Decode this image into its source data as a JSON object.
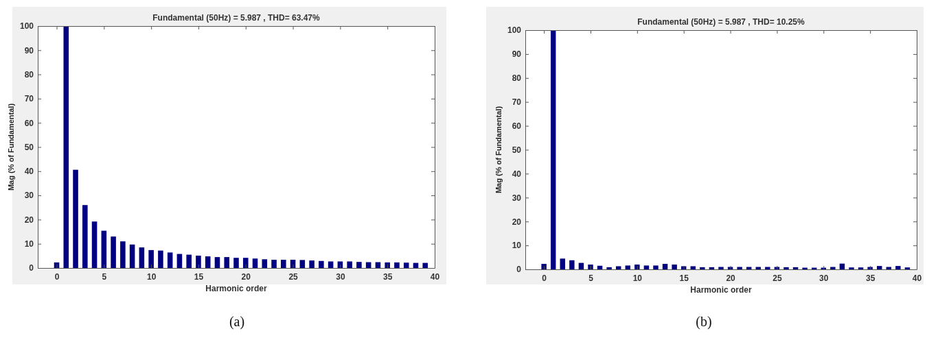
{
  "chart_data": [
    {
      "type": "bar",
      "title": "Fundamental (50Hz) = 5.987 , THD= 63.47%",
      "xlabel": "Harmonic order",
      "ylabel": "Mag (% of Fundamental)",
      "annotations": [
        "(a)"
      ],
      "x": [
        0,
        1,
        2,
        3,
        4,
        5,
        6,
        7,
        8,
        9,
        10,
        11,
        12,
        13,
        14,
        15,
        16,
        17,
        18,
        19,
        20,
        21,
        22,
        23,
        24,
        25,
        26,
        27,
        28,
        29,
        30,
        31,
        32,
        33,
        34,
        35,
        36,
        37,
        38,
        39
      ],
      "series": [
        {
          "color": "#000080",
          "values": [
            2.3,
            100,
            40.6,
            26,
            19.2,
            15.4,
            13,
            11,
            9.7,
            8.5,
            7.4,
            7.2,
            6.4,
            5.8,
            5.5,
            5.1,
            4.8,
            4.5,
            4.5,
            4.2,
            4.2,
            3.9,
            3.6,
            3.4,
            3.4,
            3.4,
            3.3,
            3.1,
            2.9,
            2.7,
            2.7,
            2.7,
            2.5,
            2.4,
            2.4,
            2.3,
            2.3,
            2.2,
            2.1,
            2.1
          ]
        }
      ],
      "xlim": [
        -2,
        40
      ],
      "xticks": [
        0,
        5,
        10,
        15,
        20,
        25,
        30,
        35,
        40
      ],
      "ylim": [
        0,
        100
      ],
      "yticks": [
        0,
        10,
        20,
        30,
        40,
        50,
        60,
        70,
        80,
        90,
        100
      ]
    },
    {
      "type": "bar",
      "title": "Fundamental (50Hz) = 5.987 , THD= 10.25%",
      "xlabel": "Harmonic order",
      "ylabel": "Mag (% of Fundamental)",
      "annotations": [
        "(b)"
      ],
      "x": [
        0,
        1,
        2,
        3,
        4,
        5,
        6,
        7,
        8,
        9,
        10,
        11,
        12,
        13,
        14,
        15,
        16,
        17,
        18,
        19,
        20,
        21,
        22,
        23,
        24,
        25,
        26,
        27,
        28,
        29,
        30,
        31,
        32,
        33,
        34,
        35,
        36,
        37,
        38,
        39
      ],
      "series": [
        {
          "color": "#000080",
          "values": [
            2.3,
            100,
            4.5,
            3.8,
            2.7,
            2.0,
            1.5,
            0.9,
            1.3,
            1.6,
            2.0,
            1.6,
            1.6,
            2.3,
            2.0,
            1.3,
            1.3,
            0.9,
            0.9,
            1.0,
            1.0,
            1.0,
            1.0,
            1.0,
            1.0,
            1.0,
            0.9,
            0.9,
            0.7,
            0.7,
            0.7,
            1.0,
            2.4,
            0.8,
            0.8,
            1.0,
            1.4,
            1.0,
            1.4,
            0.8
          ]
        }
      ],
      "xlim": [
        -2,
        40
      ],
      "xticks": [
        0,
        5,
        10,
        15,
        20,
        25,
        30,
        35,
        40
      ],
      "ylim": [
        0,
        100
      ],
      "yticks": [
        0,
        10,
        20,
        30,
        40,
        50,
        60,
        70,
        80,
        90,
        100
      ]
    }
  ]
}
